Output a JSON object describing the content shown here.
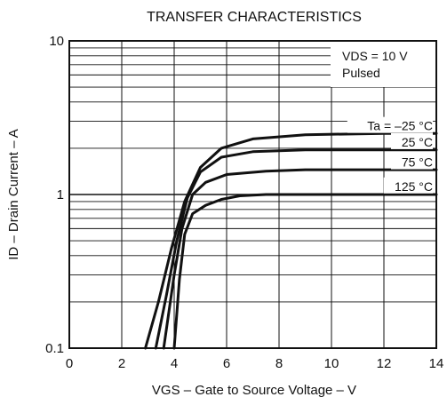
{
  "chart_data": {
    "type": "line",
    "title": "TRANSFER CHARACTERISTICS",
    "xlabel": "VGS – Gate to Source Voltage – V",
    "ylabel": "ID – Drain Current – A",
    "xlim": [
      0,
      14
    ],
    "ylim": [
      0.1,
      10
    ],
    "yscale": "log",
    "grid": true,
    "x_ticks": [
      0,
      2,
      4,
      6,
      8,
      10,
      12,
      14
    ],
    "y_ticks": [
      0.1,
      1,
      10
    ],
    "x_tick_labels": [
      "0",
      "2",
      "4",
      "6",
      "8",
      "10",
      "12",
      "14"
    ],
    "y_tick_labels": [
      "0.1",
      "1",
      "10"
    ],
    "legend_box": {
      "line1": "VDS = 10 V",
      "line2": "Pulsed",
      "placement": "top-right"
    },
    "series": [
      {
        "name": "Ta = –25 °C",
        "x": [
          2.9,
          3.4,
          3.9,
          4.4,
          5.0,
          5.8,
          7.0,
          9.0,
          12.0,
          14.0
        ],
        "y": [
          0.1,
          0.2,
          0.45,
          0.9,
          1.5,
          2.0,
          2.3,
          2.45,
          2.5,
          2.5
        ]
      },
      {
        "name": "25 °C",
        "x": [
          3.3,
          3.7,
          4.1,
          4.5,
          5.0,
          5.8,
          7.0,
          9.0,
          14.0
        ],
        "y": [
          0.1,
          0.22,
          0.5,
          0.95,
          1.4,
          1.75,
          1.9,
          1.95,
          1.95
        ]
      },
      {
        "name": "75 °C",
        "x": [
          3.6,
          4.0,
          4.3,
          4.7,
          5.2,
          6.0,
          7.5,
          9.0,
          14.0
        ],
        "y": [
          0.1,
          0.3,
          0.6,
          1.0,
          1.2,
          1.35,
          1.42,
          1.45,
          1.45
        ]
      },
      {
        "name": "125 °C",
        "x": [
          4.0,
          4.2,
          4.4,
          4.7,
          5.2,
          5.8,
          6.5,
          7.5,
          9.0,
          14.0
        ],
        "y": [
          0.1,
          0.28,
          0.55,
          0.75,
          0.85,
          0.93,
          0.98,
          1.0,
          1.0,
          1.0
        ]
      }
    ]
  }
}
